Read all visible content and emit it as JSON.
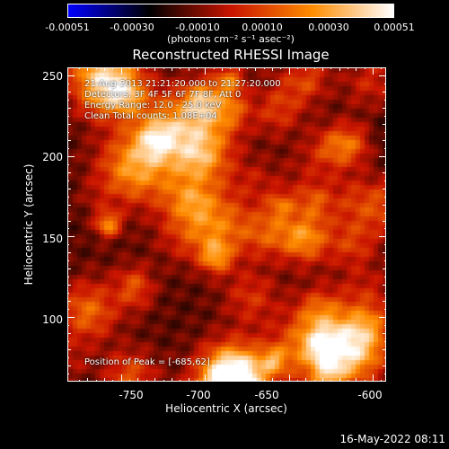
{
  "chart_data": {
    "type": "heatmap",
    "title": "Reconstructed RHESSI Image",
    "xlabel": "Heliocentric X (arcsec)",
    "ylabel": "Heliocentric Y (arcsec)",
    "xlim": [
      -782,
      -592
    ],
    "ylim": [
      60,
      255
    ],
    "xticks": [
      -750,
      -700,
      -650,
      -600
    ],
    "yticks": [
      100,
      150,
      200,
      250
    ],
    "colorbar": {
      "units": "(photons cm⁻² s⁻¹ asec⁻²)",
      "range": [
        -0.00051,
        0.00051
      ],
      "tick_labels": [
        "-0.00051",
        "-0.00030",
        "-0.00010",
        "0.00010",
        "0.00030",
        "0.00051"
      ],
      "tick_values": [
        -0.00051,
        -0.0003,
        -0.0001,
        0.0001,
        0.0003,
        0.00051
      ],
      "colormap": [
        "#0000ff",
        "#000000",
        "#c81400",
        "#ff8c00",
        "#ffffff"
      ]
    },
    "annotations": [
      "21-Aug-2013 21:21:20.000 to 21:27:20.000",
      "Detectors: 3F 4F 5F 6F 7F 8F, Att 0",
      "Energy Range: 12.0 - 25.0 keV",
      "Clean     Total counts: 1.08E+04"
    ],
    "peak_label": "Position of Peak = [-685,62]",
    "peak_position": [
      -685,
      62
    ]
  },
  "footer": {
    "timestamp": "16-May-2022 08:11"
  }
}
